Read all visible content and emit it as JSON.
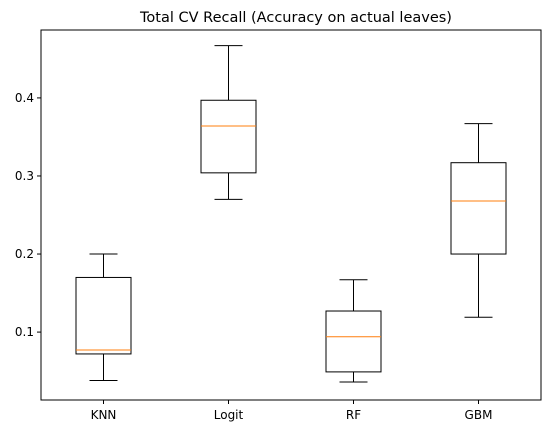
{
  "chart_data": {
    "type": "box",
    "title": "Total CV Recall (Accuracy on actual leaves)",
    "xlabel": "",
    "ylabel": "",
    "ylim": [
      0.013,
      0.487
    ],
    "yticks": [
      0.1,
      0.2,
      0.3,
      0.4
    ],
    "ytick_labels": [
      "0.1",
      "0.2",
      "0.3",
      "0.4"
    ],
    "grid": false,
    "categories": [
      "KNN",
      "Logit",
      "RF",
      "GBM"
    ],
    "boxes": [
      {
        "name": "KNN",
        "whislo": 0.038,
        "q1": 0.072,
        "med": 0.077,
        "q3": 0.17,
        "whishi": 0.2
      },
      {
        "name": "Logit",
        "whislo": 0.27,
        "q1": 0.304,
        "med": 0.364,
        "q3": 0.397,
        "whishi": 0.467
      },
      {
        "name": "RF",
        "whislo": 0.036,
        "q1": 0.049,
        "med": 0.094,
        "q3": 0.127,
        "whishi": 0.167
      },
      {
        "name": "GBM",
        "whislo": 0.119,
        "q1": 0.2,
        "med": 0.268,
        "q3": 0.317,
        "whishi": 0.367
      }
    ],
    "colors": {
      "box": "#000000",
      "median": "#ff7f0e"
    }
  }
}
